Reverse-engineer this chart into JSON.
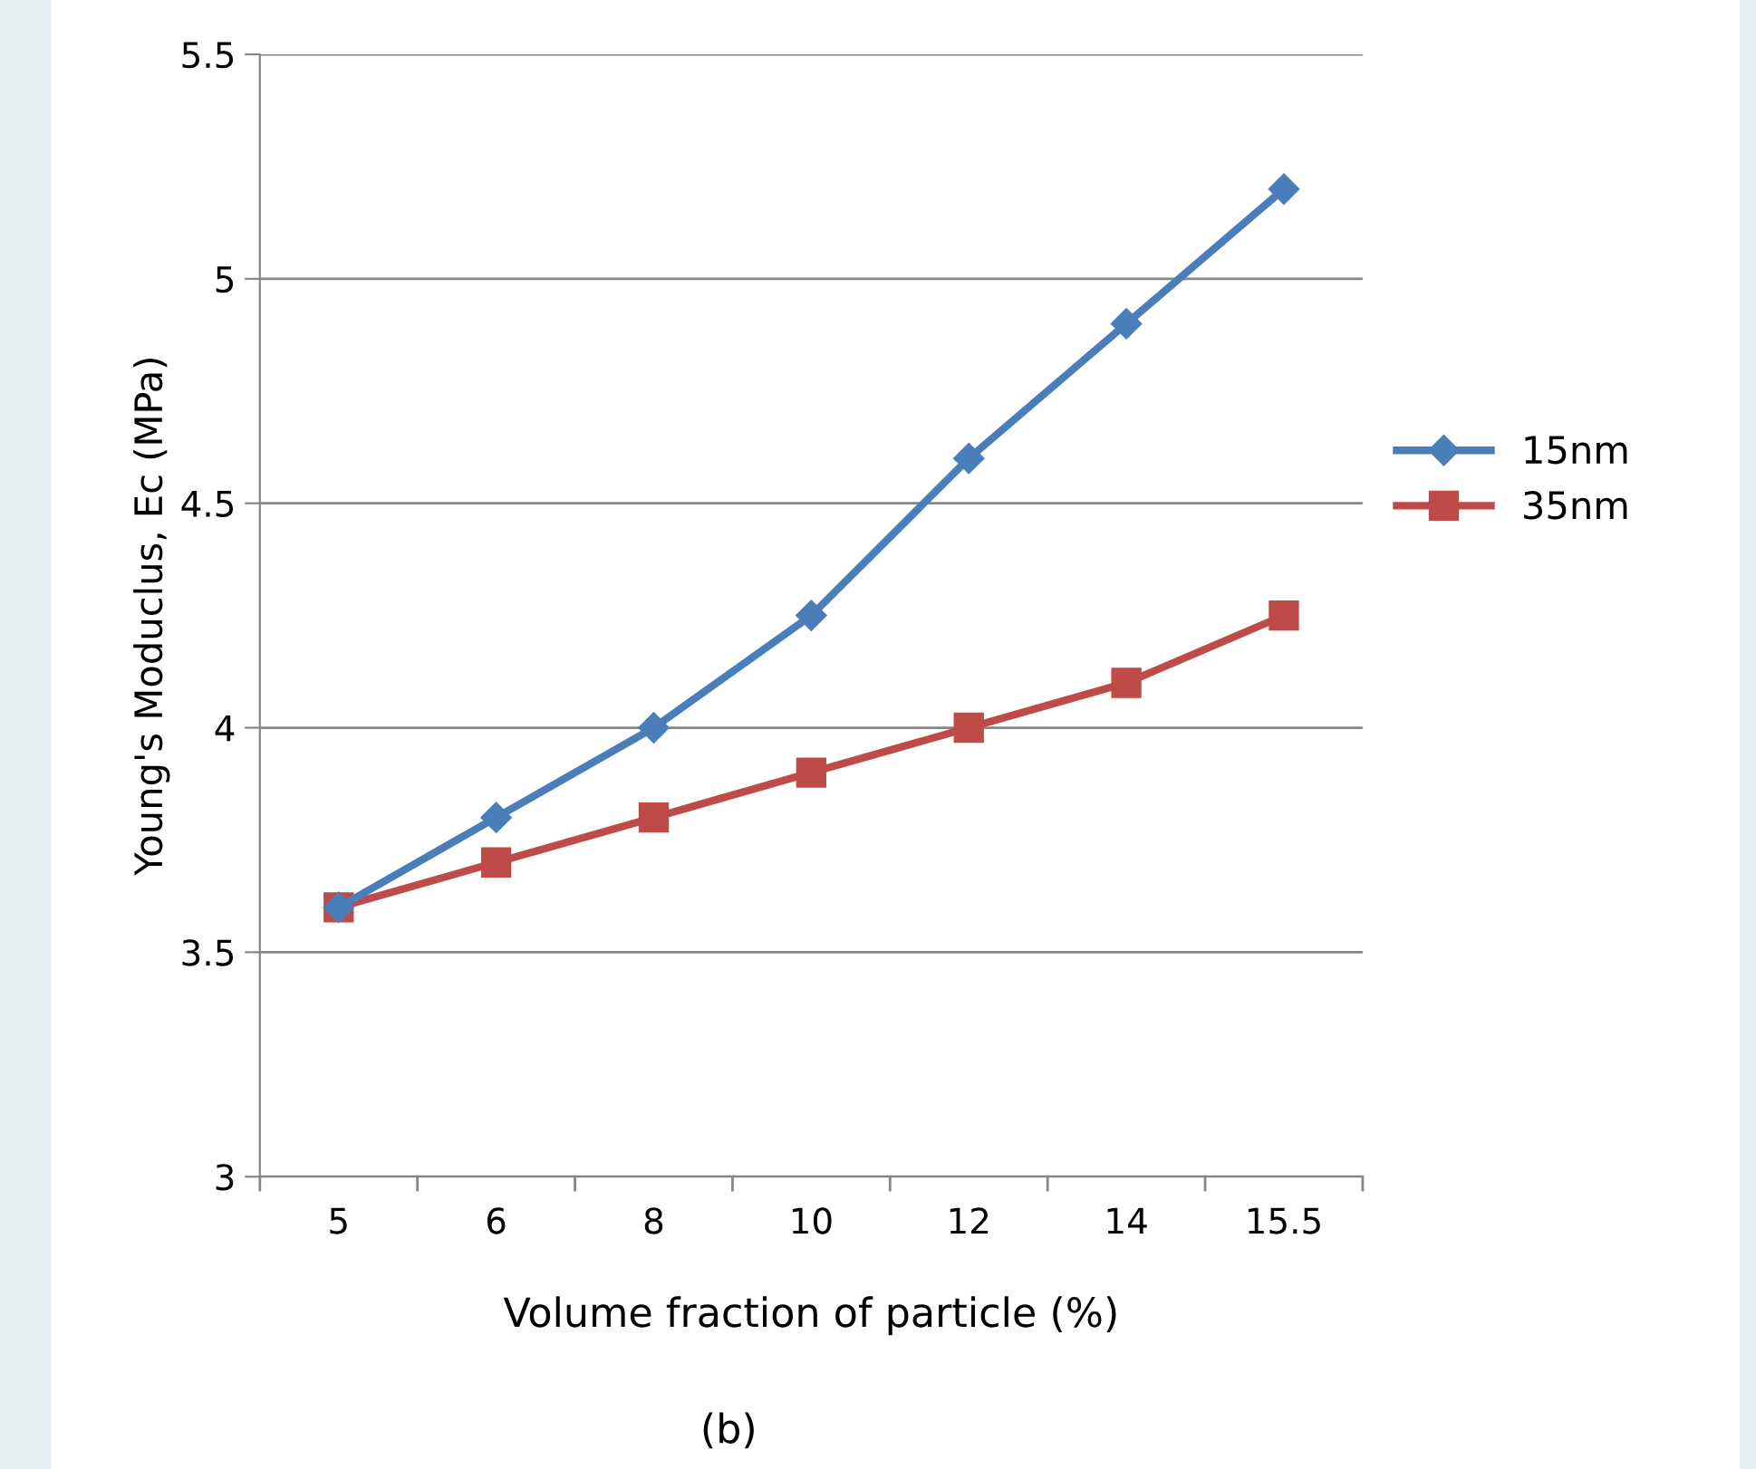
{
  "chart_data": {
    "type": "line",
    "xlabel": "Volume fraction of particle (%)",
    "ylabel": "Young's Moduclus, Ec (MPa)",
    "annotations": [
      "(b)"
    ],
    "categories": [
      "5",
      "6",
      "8",
      "10",
      "12",
      "14",
      "15.5"
    ],
    "series": [
      {
        "name": "15nm",
        "color": "#4a7ebb",
        "marker": "diamond",
        "values": [
          3.6,
          3.8,
          4.0,
          4.25,
          4.6,
          4.9,
          5.2
        ]
      },
      {
        "name": "35nm",
        "color": "#be4b48",
        "marker": "square",
        "values": [
          3.6,
          3.7,
          3.8,
          3.9,
          4.0,
          4.1,
          4.25
        ]
      }
    ],
    "ylim": [
      3,
      5.5
    ],
    "yticks": [
      3,
      3.5,
      4,
      4.5,
      5,
      5.5
    ],
    "grid": "y",
    "legend": "right",
    "line_style": "solid"
  }
}
